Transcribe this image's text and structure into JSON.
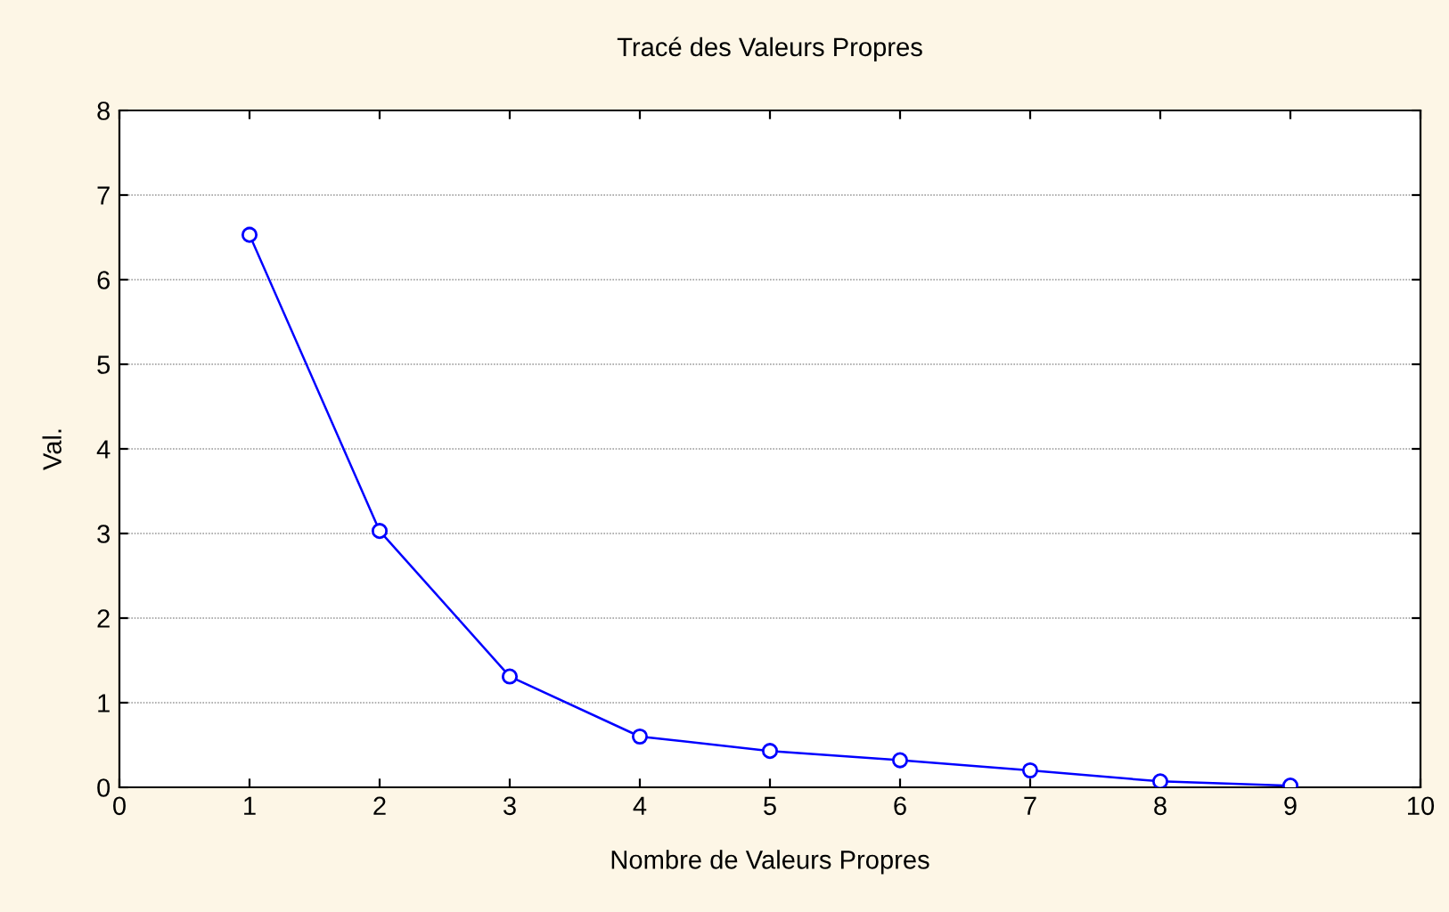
{
  "chart_data": {
    "type": "line",
    "title": "Tracé des Valeurs Propres",
    "xlabel": "Nombre de Valeurs Propres",
    "ylabel": "Val.",
    "x": [
      1,
      2,
      3,
      4,
      5,
      6,
      7,
      8,
      9
    ],
    "series": [
      {
        "color": "#0000ff",
        "values": [
          6.53,
          3.03,
          1.31,
          0.6,
          0.43,
          0.32,
          0.2,
          0.07,
          0.02
        ]
      }
    ],
    "xlim": [
      0,
      10
    ],
    "ylim": [
      0,
      8
    ],
    "xticks": [
      0,
      1,
      2,
      3,
      4,
      5,
      6,
      7,
      8,
      9,
      10
    ],
    "yticks": [
      0,
      1,
      2,
      3,
      4,
      5,
      6,
      7,
      8
    ],
    "grid": "y",
    "marker": "circle",
    "line_style": "solid"
  }
}
